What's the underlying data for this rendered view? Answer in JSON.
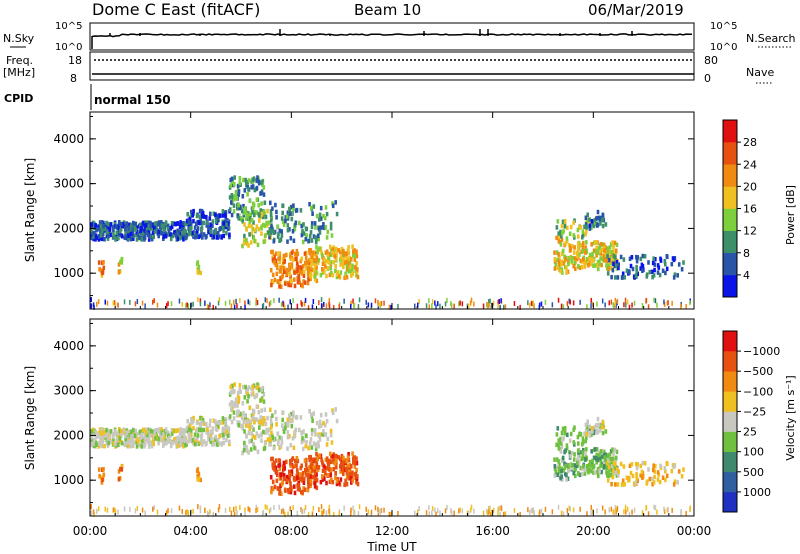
{
  "header": {
    "title": "Dome C East (fitACF)",
    "beam": "Beam 10",
    "date": "06/Mar/2019"
  },
  "top_panels": {
    "nsky_label": "N.Sky",
    "nsky_ticks": [
      "10^5",
      "10^0"
    ],
    "nsearch_label": "N.Search",
    "nsearch_ticks": [
      "10^5",
      "10^0"
    ],
    "freq_label": "Freq.",
    "freq_unit": "[MHz]",
    "freq_ticks": [
      "18",
      "8"
    ],
    "nave_label": "Nave",
    "nave_ticks": [
      "80",
      "0"
    ],
    "cpid_label": "CPID",
    "cpid_value": "normal 150"
  },
  "chart_data": [
    {
      "type": "heatmap",
      "name": "power",
      "xlabel": "Time UT",
      "ylabel": "Slant Range [km]",
      "x_ticks": [
        "00:00",
        "04:00",
        "08:00",
        "12:00",
        "16:00",
        "20:00",
        "00:00"
      ],
      "y_ticks": [
        "1000",
        "2000",
        "3000",
        "4000"
      ],
      "ylim": [
        200,
        4600
      ],
      "colorbar_label": "Power [dB]",
      "colorbar_ticks": [
        "4",
        "8",
        "12",
        "16",
        "20",
        "24",
        "28"
      ],
      "colorbar_range": [
        0,
        32
      ],
      "colors": [
        "#0a14e6",
        "#2855a8",
        "#3d8f6a",
        "#7ecf3c",
        "#f0c020",
        "#f08a10",
        "#e85010",
        "#e01010"
      ],
      "background": "#ffffff"
    },
    {
      "type": "heatmap",
      "name": "velocity",
      "xlabel": "Time UT",
      "ylabel": "Slant Range [km]",
      "x_ticks": [
        "00:00",
        "04:00",
        "08:00",
        "12:00",
        "16:00",
        "20:00",
        "00:00"
      ],
      "y_ticks": [
        "1000",
        "2000",
        "3000",
        "4000"
      ],
      "ylim": [
        200,
        4600
      ],
      "colorbar_label": "Velocity [m s⁻¹]",
      "colorbar_ticks": [
        "1000",
        "500",
        "100",
        "25",
        "−25",
        "−100",
        "−500",
        "−1000"
      ],
      "colors": [
        "#2030c0",
        "#2f5fa0",
        "#3f8a6e",
        "#70c040",
        "#c8c8c0",
        "#f0c020",
        "#f08a10",
        "#e85010",
        "#e01010"
      ],
      "background": "#ffffff"
    }
  ]
}
